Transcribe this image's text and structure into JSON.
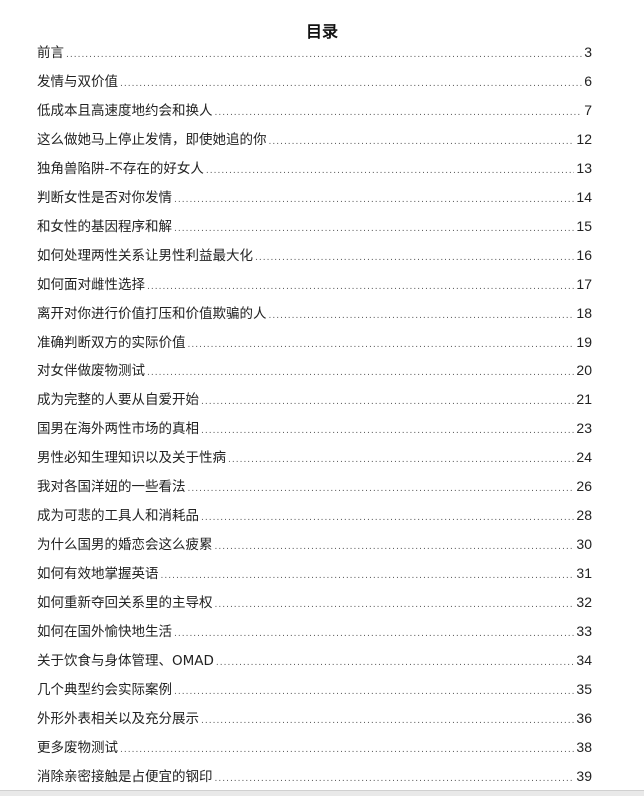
{
  "toc": {
    "title": "目录",
    "entries": [
      {
        "title": "前言",
        "page": "3"
      },
      {
        "title": "发情与双价值",
        "page": "6"
      },
      {
        "title": "低成本且高速度地约会和换人",
        "page": "7"
      },
      {
        "title": "这么做她马上停止发情，即使她追的你",
        "page": "12"
      },
      {
        "title": "独角兽陷阱-不存在的好女人",
        "page": "13"
      },
      {
        "title": "判断女性是否对你发情",
        "page": "14"
      },
      {
        "title": "和女性的基因程序和解",
        "page": "15"
      },
      {
        "title": "如何处理两性关系让男性利益最大化",
        "page": "16"
      },
      {
        "title": "如何面对雌性选择",
        "page": "17"
      },
      {
        "title": "离开对你进行价值打压和价值欺骗的人",
        "page": "18"
      },
      {
        "title": "准确判断双方的实际价值",
        "page": "19"
      },
      {
        "title": "对女伴做废物测试",
        "page": "20"
      },
      {
        "title": "成为完整的人要从自爱开始",
        "page": "21"
      },
      {
        "title": "国男在海外两性市场的真相",
        "page": "23"
      },
      {
        "title": "男性必知生理知识以及关于性病",
        "page": "24"
      },
      {
        "title": "我对各国洋妞的一些看法",
        "page": "26"
      },
      {
        "title": "成为可悲的工具人和消耗品",
        "page": "28"
      },
      {
        "title": "为什么国男的婚恋会这么疲累",
        "page": "30"
      },
      {
        "title": "如何有效地掌握英语",
        "page": "31"
      },
      {
        "title": "如何重新夺回关系里的主导权",
        "page": "32"
      },
      {
        "title": "如何在国外愉快地生活",
        "page": "33"
      },
      {
        "title": "关于饮食与身体管理、OMAD",
        "page": "34"
      },
      {
        "title": "几个典型约会实际案例",
        "page": "35"
      },
      {
        "title": "外形外表相关以及充分展示",
        "page": "36"
      },
      {
        "title": "更多废物测试",
        "page": "38"
      },
      {
        "title": "消除亲密接触是占便宜的钢印",
        "page": "39"
      }
    ]
  }
}
